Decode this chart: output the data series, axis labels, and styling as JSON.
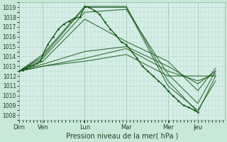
{
  "xlabel": "Pression niveau de la mer( hPa )",
  "background_color": "#c8e8d8",
  "plot_bg_color": "#d8eee8",
  "grid_color_minor": "#b0d8c8",
  "grid_color_major": "#80b898",
  "line_color": "#1a5c1a",
  "ylim": [
    1007.5,
    1019.5
  ],
  "yticks": [
    1008,
    1009,
    1010,
    1011,
    1012,
    1013,
    1014,
    1015,
    1016,
    1017,
    1018,
    1019
  ],
  "day_labels": [
    "Dim",
    "Ven",
    "Lun",
    "Mar",
    "Mer",
    "Jeu"
  ],
  "day_positions": [
    0,
    0.133,
    0.367,
    0.6,
    0.833,
    1.0
  ],
  "xlim": [
    0.0,
    1.15
  ],
  "series": [
    {
      "x": [
        0.0,
        0.133,
        0.367,
        0.6,
        0.833,
        1.0,
        1.1
      ],
      "y": [
        1012.5,
        1014.2,
        1019.1,
        1019.1,
        1011.5,
        1008.3,
        1012.0
      ],
      "smooth": false
    },
    {
      "x": [
        0.0,
        0.133,
        0.367,
        0.6,
        0.833,
        1.0,
        1.1
      ],
      "y": [
        1012.5,
        1014.0,
        1019.0,
        1019.0,
        1011.0,
        1008.5,
        1011.5
      ],
      "smooth": false
    },
    {
      "x": [
        0.0,
        0.133,
        0.367,
        0.6,
        0.833,
        1.0,
        1.1
      ],
      "y": [
        1012.5,
        1013.8,
        1018.5,
        1018.8,
        1012.2,
        1009.2,
        1012.5
      ],
      "smooth": false
    },
    {
      "x": [
        0.0,
        0.133,
        0.367,
        0.6,
        0.833,
        1.0,
        1.1
      ],
      "y": [
        1012.5,
        1013.5,
        1017.8,
        1015.5,
        1013.5,
        1010.5,
        1012.8
      ],
      "smooth": false
    },
    {
      "x": [
        0.0,
        0.133,
        0.367,
        0.6,
        0.833,
        1.0,
        1.1
      ],
      "y": [
        1012.5,
        1013.2,
        1014.5,
        1015.0,
        1013.0,
        1011.2,
        1012.5
      ],
      "smooth": false
    },
    {
      "x": [
        0.0,
        0.133,
        0.367,
        0.6,
        0.833,
        1.0,
        1.1
      ],
      "y": [
        1012.5,
        1013.0,
        1013.8,
        1014.8,
        1012.5,
        1011.5,
        1012.2
      ],
      "smooth": false
    },
    {
      "x": [
        0.0,
        0.133,
        0.367,
        0.6,
        0.833,
        1.0,
        1.1
      ],
      "y": [
        1012.5,
        1013.0,
        1013.5,
        1014.2,
        1012.0,
        1012.0,
        1012.0
      ],
      "smooth": false
    }
  ],
  "observed_x": [
    0.0,
    0.02,
    0.04,
    0.06,
    0.08,
    0.1,
    0.12,
    0.133,
    0.16,
    0.19,
    0.22,
    0.25,
    0.28,
    0.31,
    0.34,
    0.367,
    0.39,
    0.42,
    0.45,
    0.48,
    0.51,
    0.54,
    0.57,
    0.6,
    0.63,
    0.66,
    0.69,
    0.72,
    0.75,
    0.78,
    0.81,
    0.833,
    0.86,
    0.89,
    0.92,
    0.95,
    0.98,
    1.0
  ],
  "observed_y": [
    1012.5,
    1012.6,
    1012.8,
    1013.0,
    1013.1,
    1013.3,
    1013.5,
    1014.2,
    1015.2,
    1016.0,
    1016.8,
    1017.3,
    1017.6,
    1017.9,
    1018.0,
    1019.1,
    1019.0,
    1018.7,
    1018.3,
    1017.5,
    1016.8,
    1016.2,
    1015.5,
    1015.2,
    1014.5,
    1013.8,
    1013.0,
    1012.5,
    1012.0,
    1011.5,
    1011.0,
    1010.5,
    1010.0,
    1009.5,
    1009.0,
    1008.8,
    1008.5,
    1008.3
  ]
}
